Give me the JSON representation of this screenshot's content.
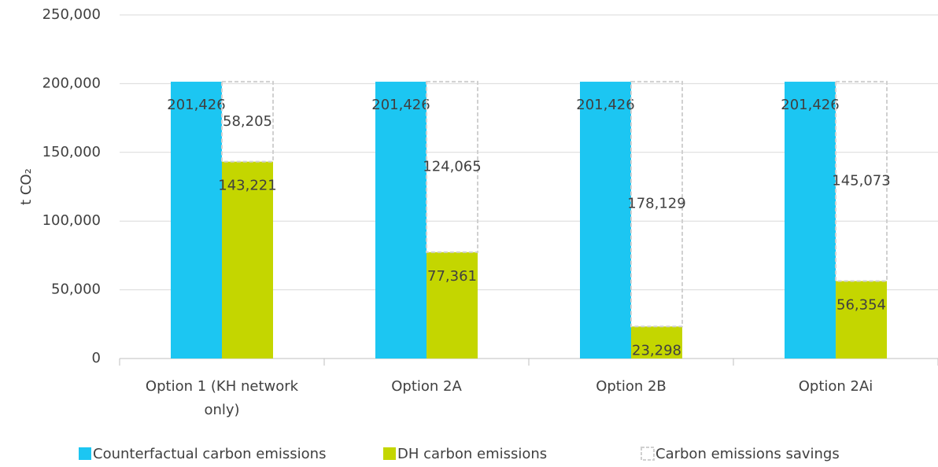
{
  "chart_data": {
    "type": "bar",
    "y_label": "t CO₂",
    "categories": [
      "Option 1 (KH network only)",
      "Option 2A",
      "Option 2B",
      "Option 2Ai"
    ],
    "series": [
      {
        "name": "Counterfactual carbon emissions",
        "color": "#1cc6f2",
        "values": [
          201426,
          201426,
          201426,
          201426
        ],
        "value_labels": [
          "201,426",
          "201,426",
          "201,426",
          "201,426"
        ]
      },
      {
        "name": "DH carbon emissions",
        "color": "#c4d600",
        "values": [
          143221,
          77361,
          23298,
          56354
        ],
        "value_labels": [
          "143,221",
          "77,361",
          "23,298",
          "56,354"
        ]
      },
      {
        "name": "Carbon emissions savings",
        "color": "#d0d0d0",
        "style": "dashed",
        "stacked": true,
        "values": [
          58205,
          124065,
          178129,
          145073
        ],
        "value_labels": [
          "58,205",
          "124,065",
          "178,129",
          "145,073"
        ]
      }
    ],
    "ylim": [
      0,
      250000
    ],
    "yticks": [
      0,
      {
        "value": 50000,
        "label": "50,000"
      },
      {
        "value": 100000,
        "label": "100,000"
      },
      {
        "value": 150000,
        "label": "150,000"
      },
      {
        "value": 200000,
        "label": "200,000"
      },
      {
        "value": 250000,
        "label": "250,000"
      }
    ],
    "grid": true
  }
}
